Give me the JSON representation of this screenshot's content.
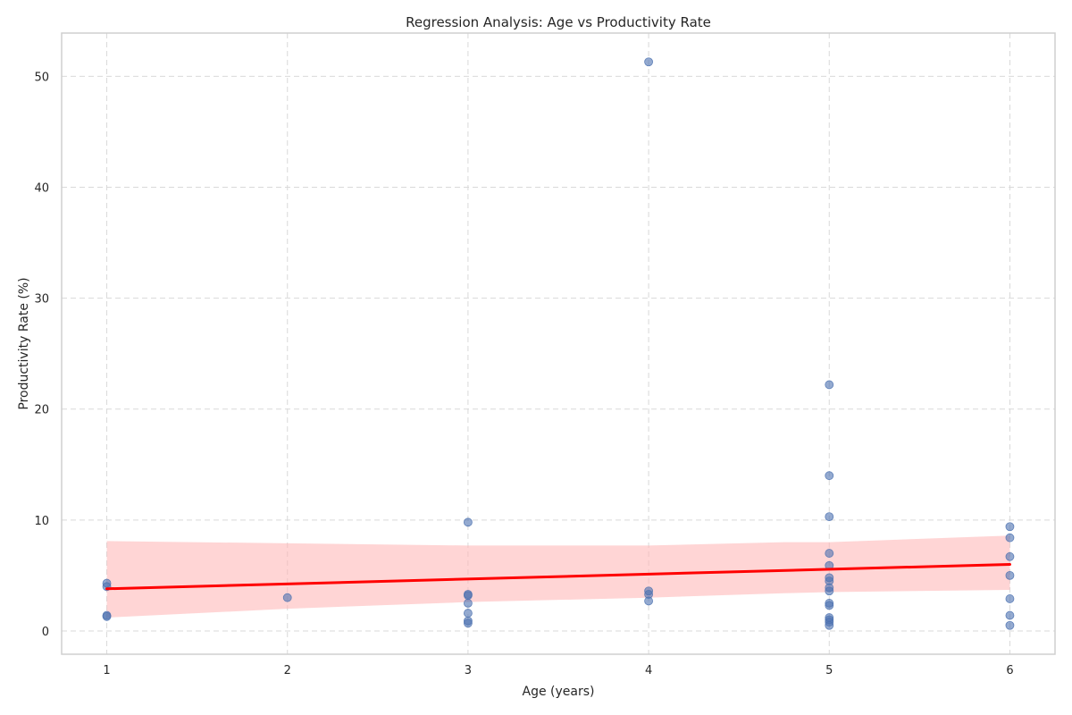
{
  "chart_data": {
    "type": "scatter",
    "title": "Regression Analysis: Age vs Productivity Rate",
    "xlabel": "Age (years)",
    "ylabel": "Productivity Rate (%)",
    "xlim": [
      0.75,
      6.25
    ],
    "ylim": [
      -2.1,
      53.9
    ],
    "xticks": [
      1,
      2,
      3,
      4,
      5,
      6
    ],
    "yticks": [
      0,
      10,
      20,
      30,
      40,
      50
    ],
    "grid": true,
    "legend": "none",
    "colors": {
      "points": "#4c72b0",
      "regression_line": "#ff0000",
      "confidence_band": "#ffb3b3",
      "frame": "#cfcfcf",
      "grid": "#d9d9d9"
    },
    "points": [
      {
        "x": 1,
        "y": 4.3
      },
      {
        "x": 1,
        "y": 4.0
      },
      {
        "x": 1,
        "y": 1.4
      },
      {
        "x": 1,
        "y": 1.3
      },
      {
        "x": 2,
        "y": 3.0
      },
      {
        "x": 3,
        "y": 9.8
      },
      {
        "x": 3,
        "y": 3.3
      },
      {
        "x": 3,
        "y": 3.2
      },
      {
        "x": 3,
        "y": 2.5
      },
      {
        "x": 3,
        "y": 1.6
      },
      {
        "x": 3,
        "y": 0.9
      },
      {
        "x": 3,
        "y": 0.7
      },
      {
        "x": 4,
        "y": 51.3
      },
      {
        "x": 4,
        "y": 3.6
      },
      {
        "x": 4,
        "y": 3.3
      },
      {
        "x": 4,
        "y": 2.7
      },
      {
        "x": 5,
        "y": 22.2
      },
      {
        "x": 5,
        "y": 14.0
      },
      {
        "x": 5,
        "y": 10.3
      },
      {
        "x": 5,
        "y": 7.0
      },
      {
        "x": 5,
        "y": 5.9
      },
      {
        "x": 5,
        "y": 4.8
      },
      {
        "x": 5,
        "y": 4.5
      },
      {
        "x": 5,
        "y": 3.9
      },
      {
        "x": 5,
        "y": 3.6
      },
      {
        "x": 5,
        "y": 2.5
      },
      {
        "x": 5,
        "y": 2.3
      },
      {
        "x": 5,
        "y": 1.2
      },
      {
        "x": 5,
        "y": 1.0
      },
      {
        "x": 5,
        "y": 0.8
      },
      {
        "x": 5,
        "y": 0.5
      },
      {
        "x": 6,
        "y": 9.4
      },
      {
        "x": 6,
        "y": 8.4
      },
      {
        "x": 6,
        "y": 6.7
      },
      {
        "x": 6,
        "y": 5.0
      },
      {
        "x": 6,
        "y": 2.9
      },
      {
        "x": 6,
        "y": 1.4
      },
      {
        "x": 6,
        "y": 0.5
      }
    ],
    "regression_line": {
      "x": [
        1,
        6
      ],
      "y": [
        3.8,
        6.0
      ]
    },
    "confidence_band": {
      "x": [
        1,
        2,
        3,
        4,
        4.75,
        5,
        6
      ],
      "upper": [
        8.1,
        7.9,
        7.7,
        7.7,
        8.0,
        8.0,
        8.6
      ],
      "lower": [
        1.2,
        2.0,
        2.6,
        3.0,
        3.4,
        3.5,
        3.7
      ]
    }
  }
}
